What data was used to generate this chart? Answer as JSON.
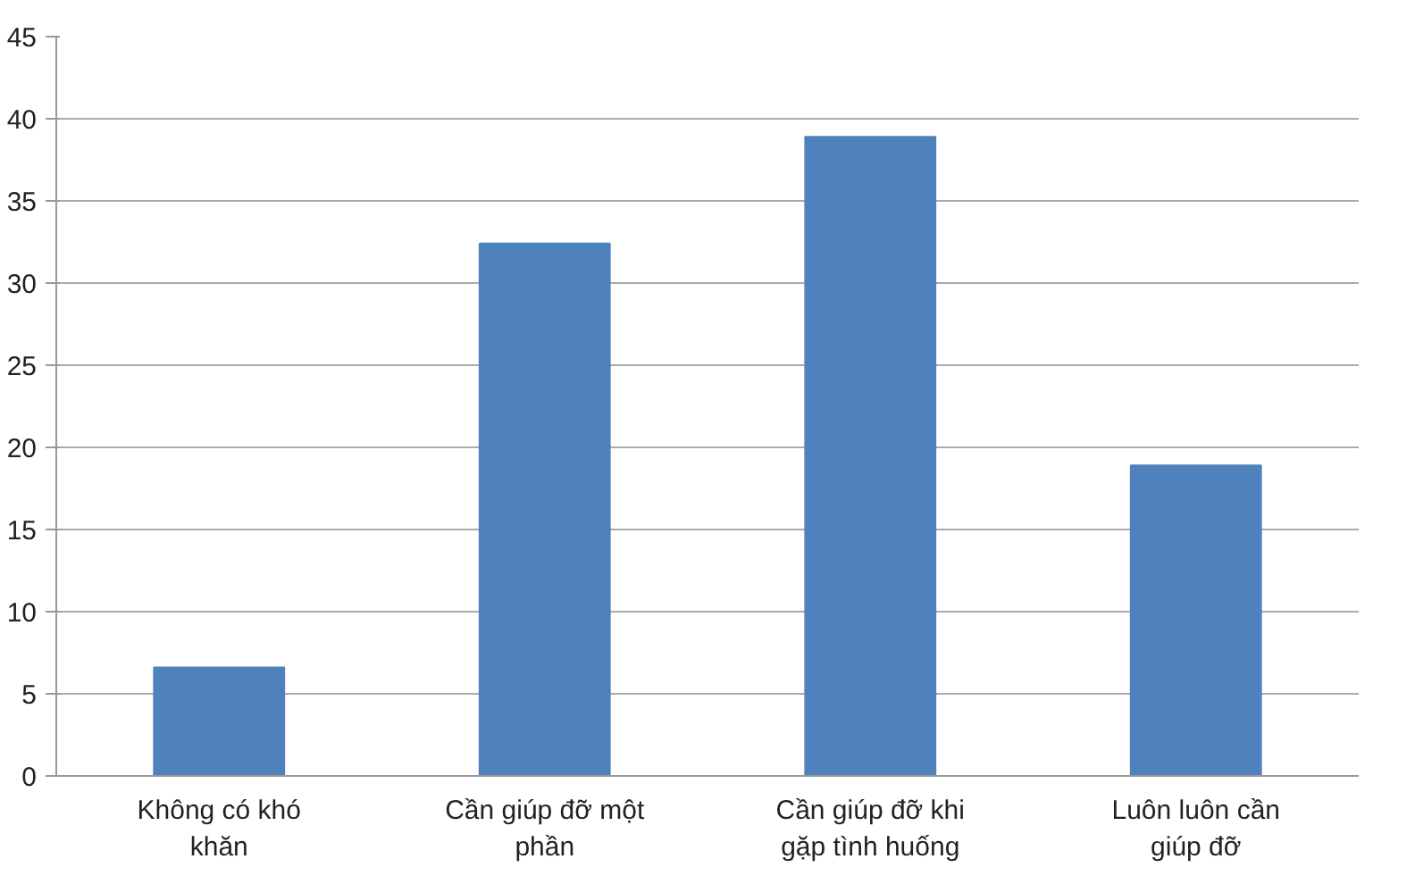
{
  "chart_data": {
    "type": "bar",
    "categories": [
      "Không có khó khăn",
      "Cần giúp đỡ một phần",
      "Cần giúp đỡ khi gặp tình huống",
      "Luôn luôn cần giúp đỡ"
    ],
    "values": [
      6.6,
      32.4,
      38.9,
      18.9
    ],
    "color": "#4f81bd",
    "ylim": [
      0,
      45
    ],
    "yticks": [
      0,
      5,
      10,
      15,
      20,
      25,
      30,
      35,
      40,
      45
    ],
    "grid": "y"
  }
}
